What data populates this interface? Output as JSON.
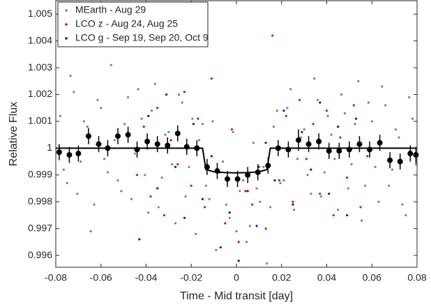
{
  "chart_data": {
    "type": "scatter",
    "xlabel": "Time - Mid transit [day]",
    "ylabel": "Relative Flux",
    "xlim": [
      -0.08,
      0.08
    ],
    "ylim": [
      0.99556,
      1.0055
    ],
    "xticks": [
      -0.08,
      -0.06,
      -0.04,
      -0.02,
      0,
      0.02,
      0.04,
      0.06,
      0.08
    ],
    "yticks": [
      0.996,
      0.997,
      0.998,
      0.999,
      1,
      1.001,
      1.002,
      1.003,
      1.004,
      1.005
    ],
    "grid": false,
    "legend": "upper left",
    "series": [
      {
        "name": "MEarth - Aug 29",
        "type": "scatter",
        "color": "#808080",
        "x": [
          -0.078,
          -0.075,
          -0.072,
          -0.069,
          -0.066,
          -0.063,
          -0.06,
          -0.057,
          -0.054,
          -0.051,
          -0.048,
          -0.045,
          -0.042,
          -0.039,
          -0.036,
          -0.033,
          -0.03,
          -0.027,
          -0.024,
          -0.021,
          -0.018,
          -0.015,
          -0.012,
          -0.009,
          -0.006,
          -0.003,
          0,
          0.003,
          0.006,
          0.009,
          0.012,
          0.015,
          0.018,
          0.021,
          0.024,
          0.027,
          0.03,
          0.033,
          0.036,
          0.039,
          0.042,
          0.045,
          0.048,
          0.051,
          0.054,
          0.057,
          0.06,
          0.063,
          0.066,
          0.069,
          0.072,
          0.075,
          0.078,
          -0.0765,
          -0.0735,
          -0.0705,
          -0.0675,
          -0.0645,
          -0.0615,
          -0.0585,
          -0.0555,
          -0.0525,
          -0.0495,
          -0.0465,
          -0.0435,
          -0.0405,
          -0.0375,
          -0.0345,
          -0.0315,
          -0.0285,
          -0.0255,
          -0.0225,
          -0.0195,
          -0.0165,
          -0.0135,
          -0.0105,
          -0.0075,
          -0.0045,
          -0.0015,
          0.0015,
          0.0045,
          0.0075,
          0.0105,
          0.0135,
          0.0165,
          0.0195,
          0.0225,
          0.0255,
          0.0285,
          0.0315,
          0.0345,
          0.0375,
          0.0405,
          0.0435,
          0.0465,
          0.0495,
          0.0525,
          0.0555,
          0.0585,
          0.0615,
          0.0645,
          0.0675,
          0.0705,
          0.0735,
          0.0765,
          0.0795
        ],
        "values": [
          1.0012,
          0.9987,
          1.0021,
          0.9995,
          1.0008,
          0.9979,
          1.0015,
          0.9991,
          1.0003,
          0.9984,
          1.0019,
          0.9998,
          1.0011,
          0.9976,
          1.0024,
          0.9989,
          1.0006,
          0.9972,
          1.0017,
          0.9993,
          0.9968,
          1.0009,
          0.9981,
          0.9962,
          0.9995,
          0.9974,
          0.9969,
          0.9988,
          0.9971,
          0.9985,
          0.9993,
          0.9978,
          1.0014,
          0.9988,
          1.0022,
          0.9996,
          1.0007,
          0.9983,
          1.0018,
          0.9991,
          1.0005,
          0.9977,
          1.0013,
          0.9994,
          1.0025,
          0.9986,
          1.001,
          0.998,
          1.0016,
          0.9992,
          1.0004,
          0.9975,
          1.0011,
          0.9992,
          1.0027,
          0.9983,
          1.001,
          0.9969,
          1.0018,
          0.9996,
          1.0031,
          0.9988,
          1.0009,
          0.9981,
          1.0022,
          0.999,
          1.0014,
          0.9978,
          1.0005,
          0.9994,
          1.002,
          0.9982,
          1.0011,
          1.0003,
          0.9986,
          1.001,
          0.9991,
          0.9979,
          1.0006,
          0.9984,
          0.9965,
          1.0002,
          0.998,
          0.9957,
          1.0008,
          0.9987,
          1.0015,
          0.9977,
          1.0004,
          0.999,
          1.0026,
          0.9982,
          1.0012,
          0.9996,
          1.002,
          0.9985,
          1.0009,
          0.9973,
          1.0017,
          0.9993,
          1.0023,
          0.9986,
          1.0007,
          0.9979,
          1.0019,
          0.9994
        ]
      },
      {
        "name": "LCO z - Aug 24, Aug 25",
        "type": "scatter",
        "color": "#e01010",
        "x": [
          -0.044,
          -0.041,
          -0.038,
          -0.035,
          -0.032,
          -0.029,
          -0.026,
          -0.023,
          -0.02,
          -0.017,
          -0.014,
          -0.011,
          -0.008,
          -0.005,
          -0.002,
          0.001,
          0.004,
          0.007,
          0.01,
          0.013,
          0.016,
          0.019,
          0.022,
          0.025,
          0.028,
          0.031,
          0.034,
          0.037,
          0.04,
          0.043,
          0.046,
          0.049,
          0.052,
          0.055,
          0.058
        ],
        "values": [
          0.999,
          1.0008,
          0.9982,
          1.0015,
          0.9975,
          1.0003,
          0.9994,
          1.0021,
          0.9986,
          1.0011,
          0.9978,
          1.0026,
          0.9991,
          0.9972,
          1.0007,
          0.9965,
          0.9984,
          0.9979,
          0.9993,
          0.997,
          1.0042,
          0.9988,
          1.0012,
          0.998,
          1.0018,
          0.9996,
          1.0009,
          0.9983,
          1.0014,
          0.9975,
          1.0004,
          0.9989,
          1.0016,
          0.9978,
          0.9997
        ]
      },
      {
        "name": "LCO g - Sep 19, Sep 20, Oct 9",
        "type": "scatter",
        "color": "#1010e0",
        "x": [
          -0.043,
          -0.039,
          -0.035,
          -0.031,
          -0.027,
          -0.023,
          -0.019,
          -0.015,
          -0.011,
          -0.007,
          -0.003,
          0.001,
          0.005,
          0.009,
          0.013,
          0.017,
          0.021,
          0.025,
          0.029,
          0.033,
          0.037,
          0.041,
          0.045,
          0.049,
          0.053
        ],
        "values": [
          0.9966,
          1.0012,
          0.9985,
          1.002,
          0.9993,
          0.9974,
          1.0009,
          0.9981,
          0.9997,
          0.9963,
          0.9976,
          0.9958,
          0.9984,
          0.9971,
          1.0002,
          0.9988,
          1.0014,
          0.9979,
          1.0006,
          0.9992,
          1.0017,
          0.9983,
          1.0008,
          0.9975,
          1.0011
        ]
      },
      {
        "type": "errorbar",
        "color": "#000000",
        "x": [
          -0.0785,
          -0.074,
          -0.07,
          -0.0655,
          -0.061,
          -0.057,
          -0.0525,
          -0.048,
          -0.044,
          -0.0395,
          -0.035,
          -0.0305,
          -0.026,
          -0.022,
          -0.0175,
          -0.013,
          -0.0085,
          -0.004,
          0.0005,
          0.005,
          0.0095,
          0.014,
          0.0185,
          0.023,
          0.0275,
          0.032,
          0.0365,
          0.041,
          0.0455,
          0.05,
          0.0545,
          0.059,
          0.0635,
          0.068,
          0.0725,
          0.077,
          0.0795
        ],
        "values": [
          0.99985,
          0.99975,
          0.9998,
          1.00045,
          1.00015,
          1.0,
          1.00045,
          1.0005,
          0.99995,
          1.00025,
          1.00015,
          1.0001,
          1.00055,
          1.00005,
          1.0,
          0.9993,
          0.99915,
          0.99885,
          0.99885,
          0.999,
          0.9991,
          0.99935,
          1.0,
          0.99995,
          1.0003,
          1.00015,
          1.00025,
          0.9999,
          0.9999,
          0.99995,
          1.00015,
          0.99995,
          1.0002,
          0.99955,
          0.9995,
          0.9998,
          0.99975
        ],
        "errors": [
          0.0003,
          0.0003,
          0.0003,
          0.0003,
          0.0003,
          0.0003,
          0.0003,
          0.0003,
          0.0003,
          0.0003,
          0.0003,
          0.0003,
          0.0003,
          0.0003,
          0.0003,
          0.0003,
          0.0003,
          0.0003,
          0.0003,
          0.0003,
          0.0003,
          0.0003,
          0.0003,
          0.0003,
          0.0004,
          0.0003,
          0.0003,
          0.0003,
          0.0003,
          0.0003,
          0.0003,
          0.0003,
          0.0003,
          0.0003,
          0.0003,
          0.0003,
          0.0003
        ]
      },
      {
        "type": "line",
        "color": "#000000",
        "x": [
          -0.08,
          -0.015,
          -0.0135,
          -0.01,
          -0.005,
          0,
          0.005,
          0.01,
          0.0135,
          0.015,
          0.08
        ],
        "values": [
          1,
          1,
          0.9992,
          0.99912,
          0.99909,
          0.99908,
          0.99909,
          0.99912,
          0.9992,
          1,
          1
        ]
      }
    ]
  }
}
